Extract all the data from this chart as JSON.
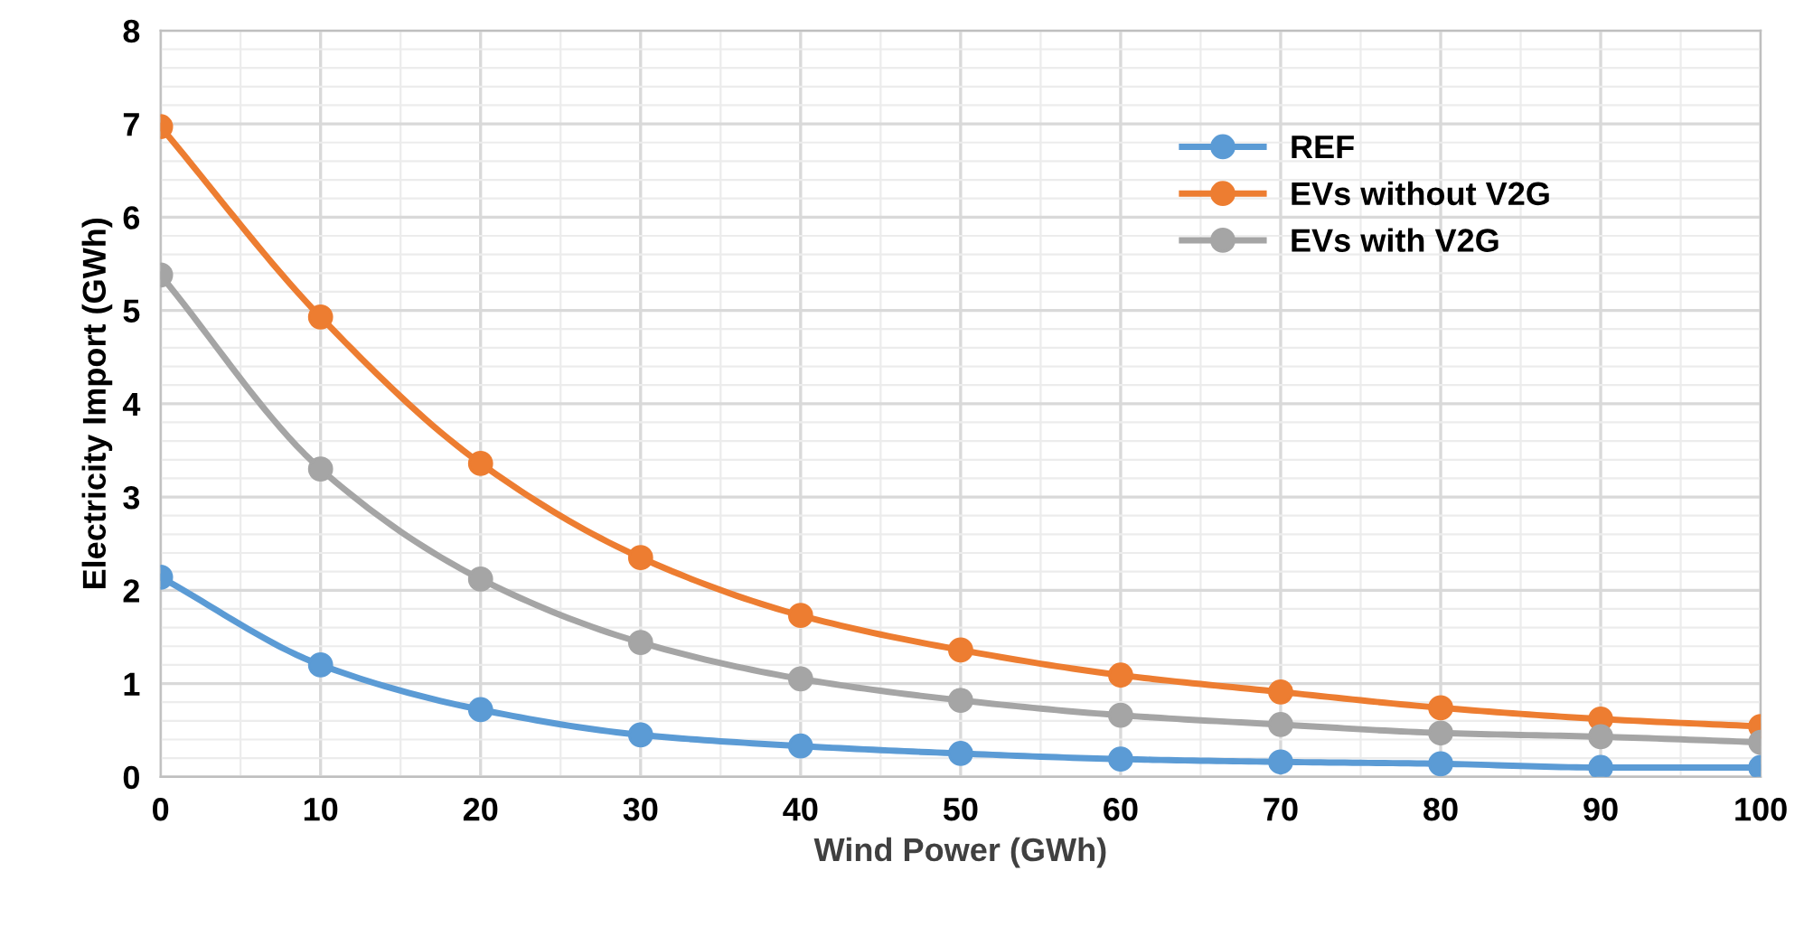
{
  "chart_data": {
    "type": "line",
    "xlabel": "Wind Power (GWh)",
    "ylabel": "Electricity Import (GWh)",
    "x": [
      0,
      10,
      20,
      30,
      40,
      50,
      60,
      70,
      80,
      90,
      100
    ],
    "xlim": [
      0,
      100
    ],
    "xticks": [
      0,
      10,
      20,
      30,
      40,
      50,
      60,
      70,
      80,
      90,
      100
    ],
    "ylim": [
      0,
      8
    ],
    "yticks": [
      0,
      1,
      2,
      3,
      4,
      5,
      6,
      7,
      8
    ],
    "grid": true,
    "legend": "top right",
    "marker": "circle",
    "line_style": "solid",
    "series": [
      {
        "name": "REF",
        "color": "#5b9bd5",
        "values": [
          2.14,
          1.2,
          0.72,
          0.45,
          0.33,
          0.25,
          0.19,
          0.16,
          0.14,
          0.1,
          0.1
        ]
      },
      {
        "name": "EVs without V2G",
        "color": "#ed7d31",
        "values": [
          6.97,
          4.93,
          3.36,
          2.35,
          1.73,
          1.36,
          1.09,
          0.91,
          0.74,
          0.62,
          0.54
        ]
      },
      {
        "name": "EVs with V2G",
        "color": "#a5a5a5",
        "values": [
          5.38,
          3.3,
          2.12,
          1.44,
          1.05,
          0.82,
          0.66,
          0.56,
          0.47,
          0.43,
          0.37
        ]
      }
    ]
  }
}
